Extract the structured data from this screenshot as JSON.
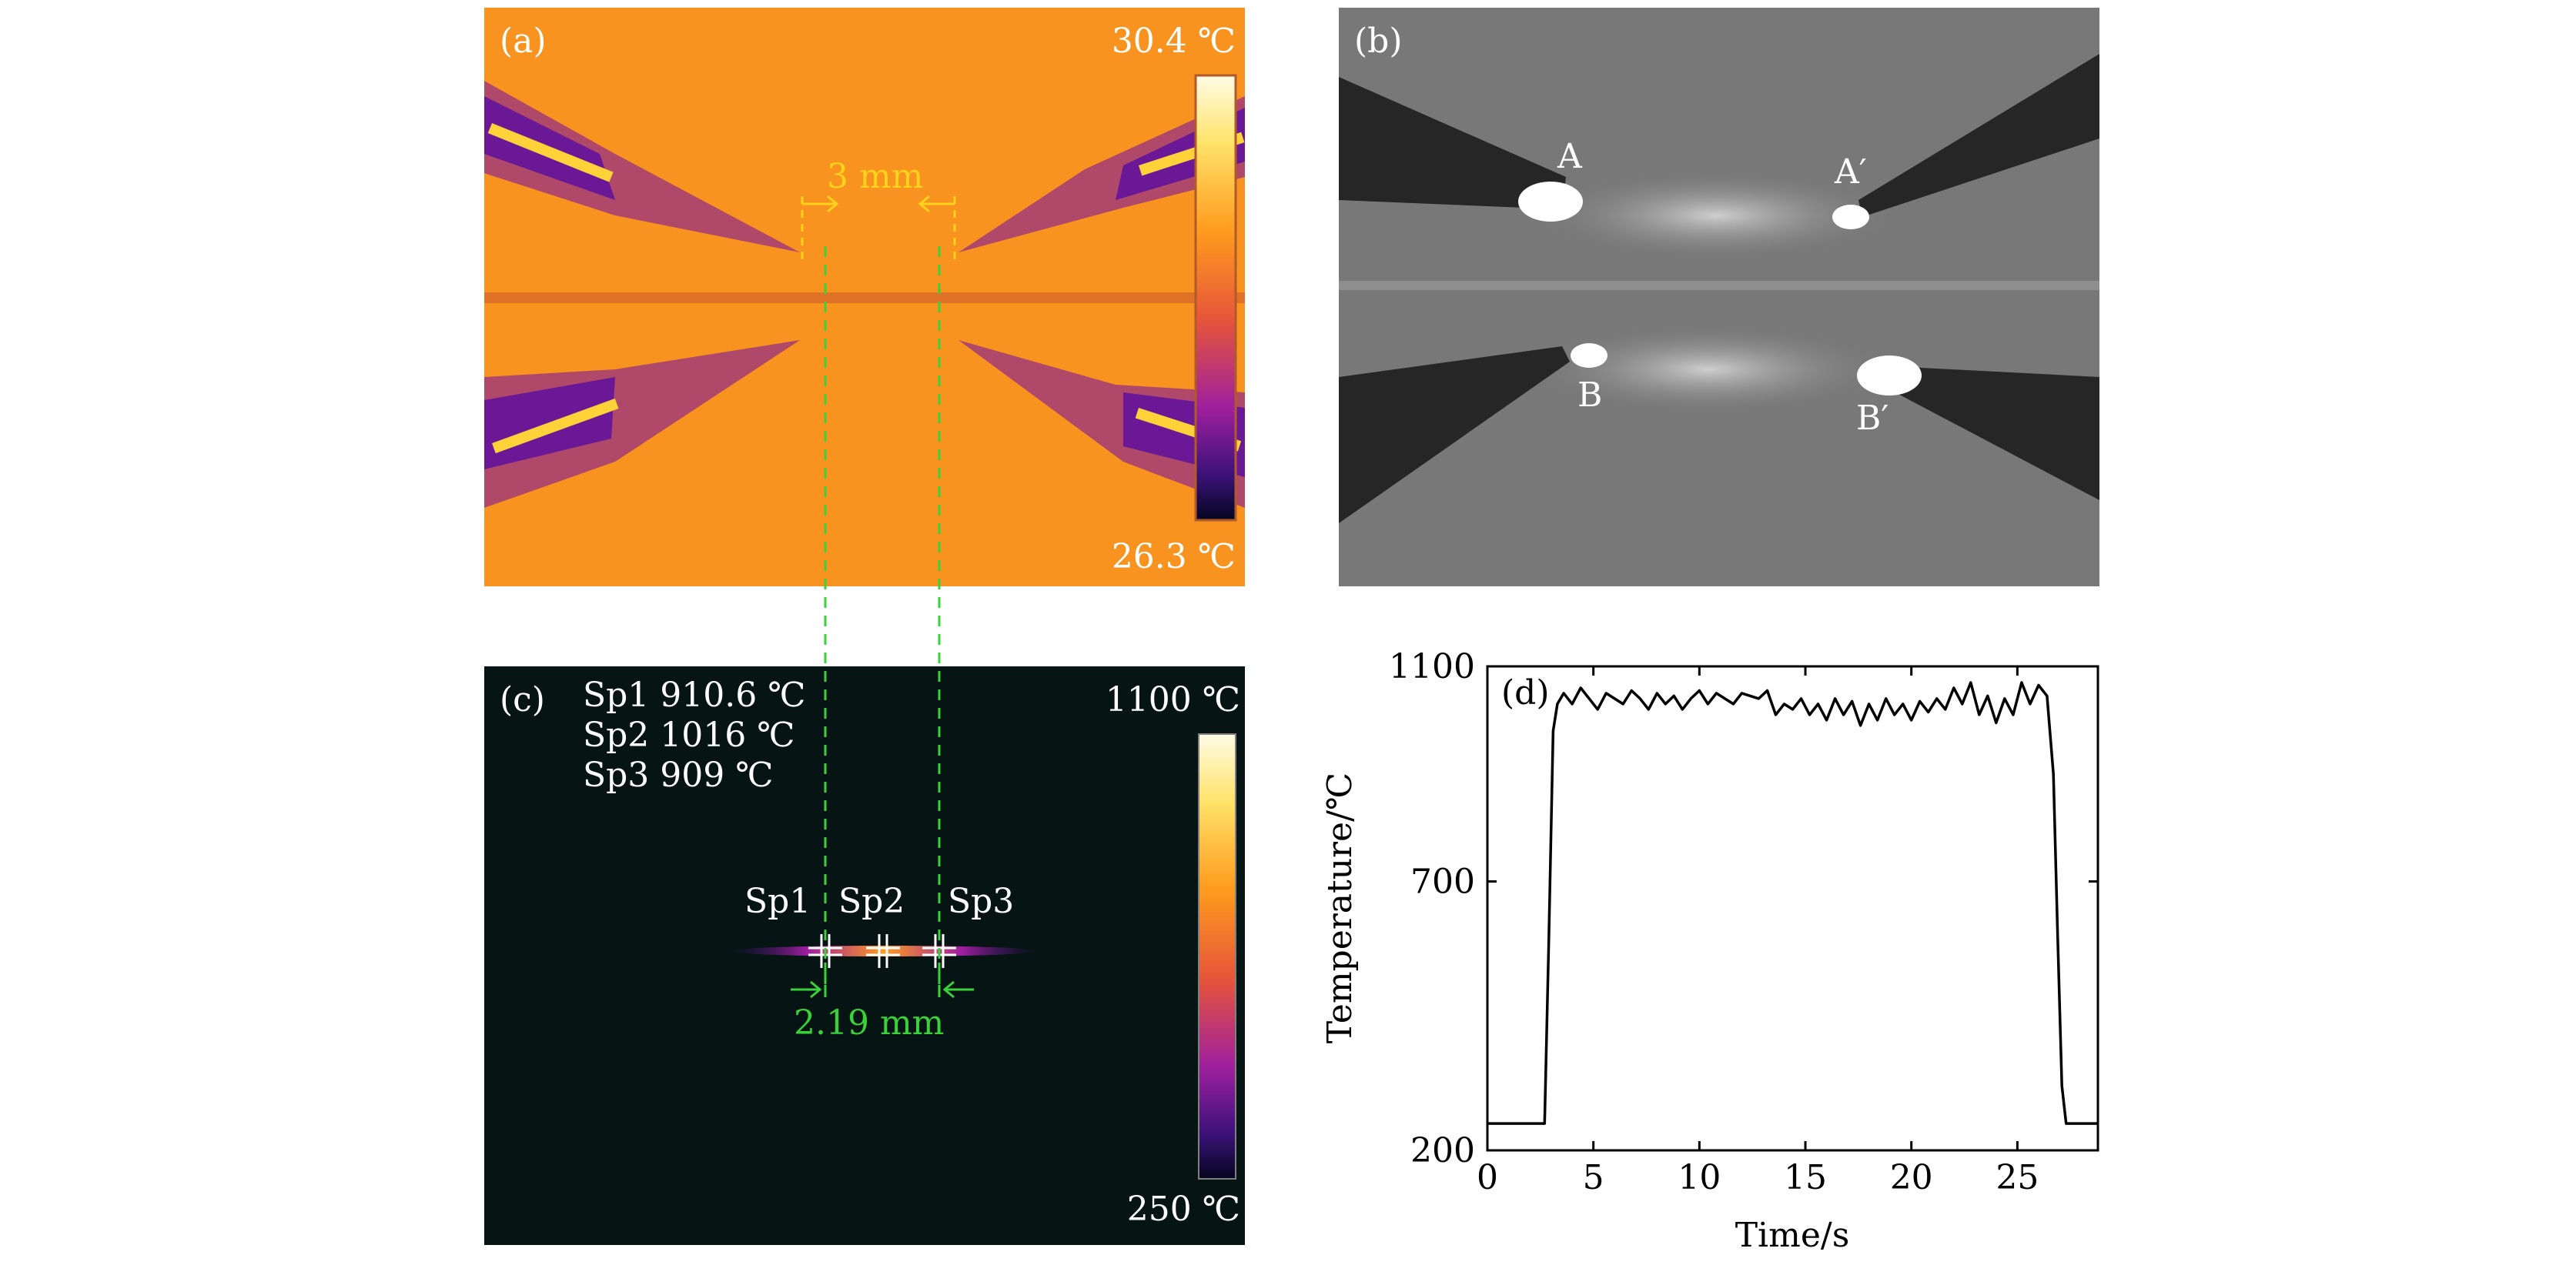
{
  "panel_a": {
    "label": "(a)",
    "temp_max": "30.4 ℃",
    "temp_min": "26.3 ℃",
    "gap_label": "3 mm"
  },
  "panel_b": {
    "label": "(b)",
    "tip_labels": [
      "A",
      "A′",
      "B",
      "B′"
    ]
  },
  "panel_c": {
    "label": "(c)",
    "readouts": [
      "Sp1 910.6 ℃",
      "Sp2 1016 ℃",
      "Sp3 909 ℃"
    ],
    "spot_labels": [
      "Sp1",
      "Sp2",
      "Sp3"
    ],
    "temp_max": "1100 ℃",
    "temp_min": "250 ℃",
    "gap_label": "2.19 mm"
  },
  "colors": {
    "thermal_orange": "#f7931e",
    "thermal_dark": "#061414",
    "dimension_yellow": "#ffd21c",
    "dimension_green": "#3ad13a",
    "line": "#000000"
  },
  "chart_data": {
    "type": "line",
    "panel_label": "(d)",
    "xlabel": "Time/s",
    "ylabel": "Temperature/℃",
    "xlim": [
      0,
      28.8
    ],
    "ylim": [
      200,
      1100
    ],
    "xticks": [
      0,
      5,
      10,
      15,
      20,
      25
    ],
    "yticks": [
      200,
      700,
      1100
    ],
    "grid": false,
    "series": [
      {
        "x": [
          0.0,
          2.5,
          2.7,
          2.9,
          3.1,
          3.3,
          3.6,
          4.0,
          4.4,
          4.8,
          5.2,
          5.6,
          6.0,
          6.4,
          6.8,
          7.2,
          7.6,
          8.0,
          8.4,
          8.8,
          9.2,
          9.6,
          10.0,
          10.4,
          10.8,
          11.2,
          11.6,
          12.0,
          12.4,
          12.8,
          13.2,
          13.6,
          14.0,
          14.4,
          14.8,
          15.2,
          15.6,
          16.0,
          16.4,
          16.8,
          17.2,
          17.6,
          18.0,
          18.4,
          18.8,
          19.2,
          19.6,
          20.0,
          20.4,
          20.8,
          21.2,
          21.6,
          22.0,
          22.4,
          22.8,
          23.2,
          23.6,
          24.0,
          24.4,
          24.8,
          25.2,
          25.6,
          26.0,
          26.4,
          26.7,
          26.9,
          27.1,
          27.3,
          27.6,
          28.8
        ],
        "y": [
          250,
          250,
          250,
          600,
          980,
          1030,
          1050,
          1030,
          1060,
          1040,
          1020,
          1050,
          1040,
          1030,
          1055,
          1040,
          1020,
          1050,
          1030,
          1045,
          1020,
          1040,
          1055,
          1030,
          1050,
          1040,
          1030,
          1050,
          1045,
          1040,
          1055,
          1010,
          1030,
          1020,
          1040,
          1010,
          1030,
          1000,
          1040,
          1010,
          1035,
          990,
          1030,
          1000,
          1040,
          1010,
          1030,
          1000,
          1035,
          1015,
          1040,
          1020,
          1060,
          1030,
          1070,
          1010,
          1045,
          995,
          1040,
          1010,
          1070,
          1030,
          1065,
          1045,
          900,
          600,
          320,
          250,
          250,
          250
        ]
      }
    ]
  }
}
